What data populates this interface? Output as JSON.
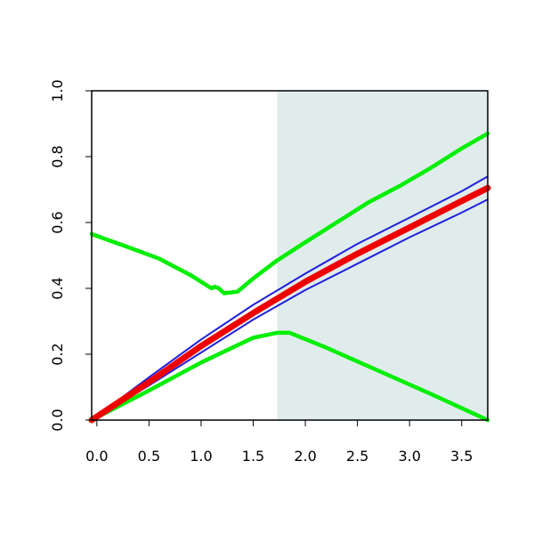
{
  "chart_data": {
    "type": "line",
    "title": "",
    "xlabel": "",
    "ylabel": "",
    "xlim": [
      -0.05,
      3.75
    ],
    "ylim": [
      0.0,
      1.0
    ],
    "grid": false,
    "x_ticks": [
      "0.0",
      "0.5",
      "1.0",
      "1.5",
      "2.0",
      "2.5",
      "3.0",
      "3.5"
    ],
    "y_ticks": [
      "0.0",
      "0.2",
      "0.4",
      "0.6",
      "0.8",
      "1.0"
    ],
    "shaded_region": {
      "x_start": 1.73,
      "x_end": 3.75,
      "color": "#e0ecec"
    },
    "series": [
      {
        "color": "#00ee00",
        "width": 4.5,
        "points": [
          [
            -0.05,
            0.565
          ],
          [
            0.3,
            0.525
          ],
          [
            0.6,
            0.49
          ],
          [
            0.9,
            0.44
          ],
          [
            1.1,
            0.4
          ],
          [
            1.13,
            0.405
          ],
          [
            1.17,
            0.4
          ],
          [
            1.22,
            0.385
          ],
          [
            1.35,
            0.39
          ],
          [
            1.5,
            0.43
          ],
          [
            1.73,
            0.485
          ],
          [
            2.0,
            0.54
          ],
          [
            2.3,
            0.6
          ],
          [
            2.6,
            0.66
          ],
          [
            2.9,
            0.71
          ],
          [
            3.2,
            0.765
          ],
          [
            3.5,
            0.825
          ],
          [
            3.75,
            0.87
          ]
        ]
      },
      {
        "color": "#00ee00",
        "width": 4.5,
        "points": [
          [
            -0.05,
            0.0
          ],
          [
            0.5,
            0.09
          ],
          [
            1.0,
            0.175
          ],
          [
            1.5,
            0.25
          ],
          [
            1.73,
            0.265
          ],
          [
            1.85,
            0.265
          ],
          [
            2.2,
            0.22
          ],
          [
            2.7,
            0.15
          ],
          [
            3.2,
            0.08
          ],
          [
            3.75,
            0.0
          ]
        ]
      },
      {
        "color": "#2020dd",
        "width": 2,
        "points": [
          [
            -0.05,
            0.0
          ],
          [
            0.5,
            0.13
          ],
          [
            1.0,
            0.245
          ],
          [
            1.5,
            0.35
          ],
          [
            2.0,
            0.445
          ],
          [
            2.5,
            0.535
          ],
          [
            3.0,
            0.615
          ],
          [
            3.5,
            0.695
          ],
          [
            3.75,
            0.74
          ]
        ]
      },
      {
        "color": "#2020dd",
        "width": 2,
        "points": [
          [
            -0.05,
            0.0
          ],
          [
            0.5,
            0.105
          ],
          [
            1.0,
            0.205
          ],
          [
            1.5,
            0.305
          ],
          [
            2.0,
            0.395
          ],
          [
            2.5,
            0.475
          ],
          [
            3.0,
            0.555
          ],
          [
            3.5,
            0.63
          ],
          [
            3.75,
            0.67
          ]
        ]
      },
      {
        "color": "#ee0000",
        "width": 7,
        "points": [
          [
            -0.05,
            0.0
          ],
          [
            0.5,
            0.115
          ],
          [
            1.0,
            0.225
          ],
          [
            1.5,
            0.325
          ],
          [
            2.0,
            0.42
          ],
          [
            2.5,
            0.505
          ],
          [
            3.0,
            0.585
          ],
          [
            3.5,
            0.665
          ],
          [
            3.75,
            0.705
          ]
        ]
      }
    ]
  }
}
